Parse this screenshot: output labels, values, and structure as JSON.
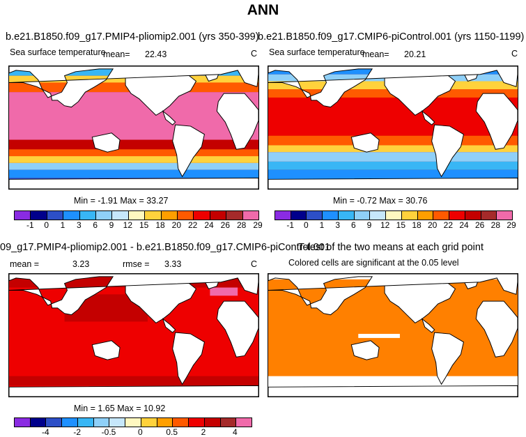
{
  "title": "ANN",
  "panels": [
    {
      "title": "b.e21.B1850.f09_g17.PMIP4-pliomip2.001 (yrs 350-399)",
      "variable": "Sea surface temperature",
      "mean_label": "mean=",
      "mean_value": "22.43",
      "units": "C",
      "min_max": "Min =   -1.91  Max =   33.27"
    },
    {
      "title": "b.e21.B1850.f09_g17.CMIP6-piControl.001 (yrs 1150-1199)",
      "variable": "Sea surface temperature",
      "mean_label": "mean=",
      "mean_value": "20.21",
      "units": "C",
      "min_max": "Min =   -0.72  Max =   30.76"
    },
    {
      "title": "09_g17.PMIP4-pliomip2.001 - b.e21.B1850.f09_g17.CMIP6-piControl.001",
      "mean_label": "mean =",
      "mean_value": "3.23",
      "rmse_label": "rmse =",
      "rmse_value": "3.33",
      "units": "C",
      "min_max": "Min =   1.65  Max =   10.92"
    },
    {
      "title": "T-test of the two means at each grid point",
      "subtitle": "Colored cells are significant at the 0.05 level"
    }
  ],
  "colorbar_abs": {
    "labels": [
      "-1",
      "0",
      "1",
      "3",
      "6",
      "9",
      "12",
      "15",
      "18",
      "20",
      "22",
      "24",
      "26",
      "28",
      "29"
    ],
    "colors": [
      "#8a2be2",
      "#00008b",
      "#2d4fc7",
      "#1e90ff",
      "#38b6f5",
      "#8fd0f8",
      "#c6e7fb",
      "#fff8c0",
      "#ffd23c",
      "#ff9f00",
      "#ff5a00",
      "#ee0000",
      "#c40000",
      "#a52a2a",
      "#f06aaa"
    ]
  },
  "colorbar_diff": {
    "labels": [
      "-4",
      "-2",
      "-0.5",
      "0",
      "0.5",
      "2",
      "4"
    ],
    "colors": [
      "#8a2be2",
      "#00008b",
      "#2d4fc7",
      "#1e90ff",
      "#38b6f5",
      "#8fd0f8",
      "#c6e7fb",
      "#fff8c0",
      "#ffd23c",
      "#ff9f00",
      "#ff5a00",
      "#ee0000",
      "#c40000",
      "#a52a2a",
      "#f06aaa"
    ]
  },
  "map_colors": {
    "warm_pool": "#f06aaa",
    "hot": "#ee0000",
    "warm": "#ff5a00",
    "mild": "#ff9f00",
    "cool": "#ffd23c",
    "cold": "#38b6f5",
    "polar": "#00008b",
    "significant": "#ff8000",
    "land": "#ffffff"
  }
}
